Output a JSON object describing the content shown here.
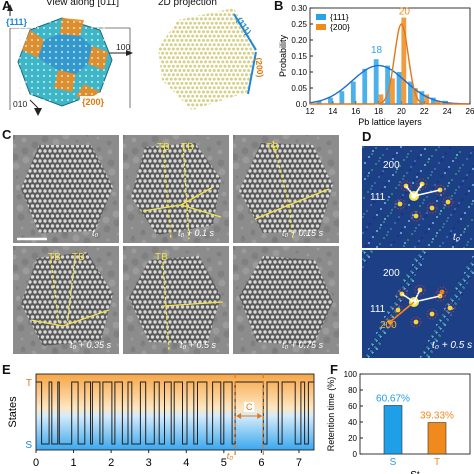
{
  "panel_a": {
    "label": "A",
    "view_text": "View along [011]",
    "projection_text": "2D projection",
    "facet_111": "{111}",
    "facet_200": "{200}",
    "axis_100": "100",
    "axis_010": "010",
    "axis_001": "001",
    "proj_111": "(111)",
    "proj_200": "(200)",
    "colors": {
      "blue": "#1e88d6",
      "orange": "#f08a1c",
      "atom": "#d6d08a"
    }
  },
  "panel_b": {
    "label": "B",
    "chart_data": {
      "type": "bar",
      "xlabel": "Pb lattice layers",
      "ylabel": "Probability",
      "xlim": [
        12,
        26
      ],
      "ylim": [
        0,
        0.3
      ],
      "xticks": [
        12,
        14,
        16,
        18,
        20,
        22,
        24,
        26
      ],
      "yticks": [
        0.0,
        0.05,
        0.1,
        0.15,
        0.2,
        0.25,
        0.3
      ],
      "xtick_labels": [
        "12",
        "14",
        "16",
        "18",
        "20",
        "22",
        "24",
        "26"
      ],
      "ytick_labels": [
        "0.0",
        "0.05",
        "0.10",
        "0.15",
        "0.20",
        "0.25",
        "0.30"
      ],
      "legend_position": "top-left",
      "series": [
        {
          "name": "{111}",
          "color": "#2aa3e6",
          "x": [
            13,
            14,
            15,
            16,
            17,
            18,
            19,
            20,
            21,
            22,
            23,
            24
          ],
          "values": [
            0.01,
            0.02,
            0.04,
            0.07,
            0.11,
            0.14,
            0.12,
            0.1,
            0.07,
            0.04,
            0.02,
            0.01
          ],
          "peak_label": "18",
          "peak_x": 18
        },
        {
          "name": "{200}",
          "color": "#f08a1c",
          "x": [
            18,
            19,
            20,
            21,
            22,
            23
          ],
          "values": [
            0.03,
            0.08,
            0.27,
            0.05,
            0.03,
            0.01
          ],
          "peak_label": "20",
          "peak_x": 20
        }
      ],
      "fits": [
        {
          "color": "#1e6fd0",
          "mu": 18,
          "sigma": 2.3,
          "amp": 0.12
        },
        {
          "color": "#e0781a",
          "mu": 20,
          "sigma": 0.6,
          "amp": 0.25
        }
      ]
    }
  },
  "panel_c": {
    "label": "C",
    "tb": "TB",
    "times": [
      "t₀",
      "t₀ + 0.1 s",
      "t₀ + 0.15 s",
      "t₀ + 0.35 s",
      "t₀ + 0.5 s",
      "t₀ + 0.75 s"
    ]
  },
  "panel_d": {
    "label": "D",
    "top": {
      "l1": "200",
      "l2": "111",
      "time": "t₀"
    },
    "bottom": {
      "l1": "200",
      "l2": "111",
      "l3": "200",
      "time": "t₀ + 0.5 s"
    }
  },
  "panel_e": {
    "label": "E",
    "chart_data": {
      "type": "line",
      "ylabel": "States",
      "xlim": [
        0,
        7.4
      ],
      "xticks": [
        0,
        1,
        2,
        3,
        4,
        5,
        6,
        7
      ],
      "xtick_labels": [
        "0",
        "1",
        "2",
        "3",
        "4",
        "5",
        "6",
        "7"
      ],
      "state_labels": [
        "T",
        "S"
      ],
      "annotation_c": "C",
      "t0_label": "t₀",
      "dashed_x": [
        5.3,
        6.05
      ],
      "transitions": [
        0.15,
        0.35,
        0.42,
        0.58,
        0.62,
        0.95,
        1.12,
        1.3,
        1.45,
        1.5,
        1.7,
        1.78,
        2.02,
        2.1,
        2.3,
        2.45,
        2.55,
        2.78,
        2.92,
        3.15,
        3.28,
        3.42,
        3.6,
        3.68,
        3.9,
        4.02,
        4.2,
        4.3,
        4.55,
        4.7,
        4.92,
        5.0,
        5.22,
        5.3,
        6.05,
        6.15,
        6.45,
        6.55,
        6.9,
        7.05,
        7.15,
        7.25
      ],
      "start_state": "T"
    }
  },
  "panel_f": {
    "label": "F",
    "chart_data": {
      "type": "bar",
      "ylabel": "Retention time (%)",
      "categories": [
        "S",
        "T"
      ],
      "values": [
        60.67,
        39.33
      ],
      "value_labels": [
        "60.67%",
        "39.33%"
      ],
      "colors": [
        "#1e9fe8",
        "#f08a1c"
      ],
      "ylim": [
        0,
        100
      ],
      "yticks": [
        0,
        20,
        40,
        60,
        80,
        100
      ],
      "ytick_labels": [
        "0",
        "20",
        "40",
        "60",
        "80",
        "100"
      ],
      "xlabel_partial": "St"
    }
  }
}
